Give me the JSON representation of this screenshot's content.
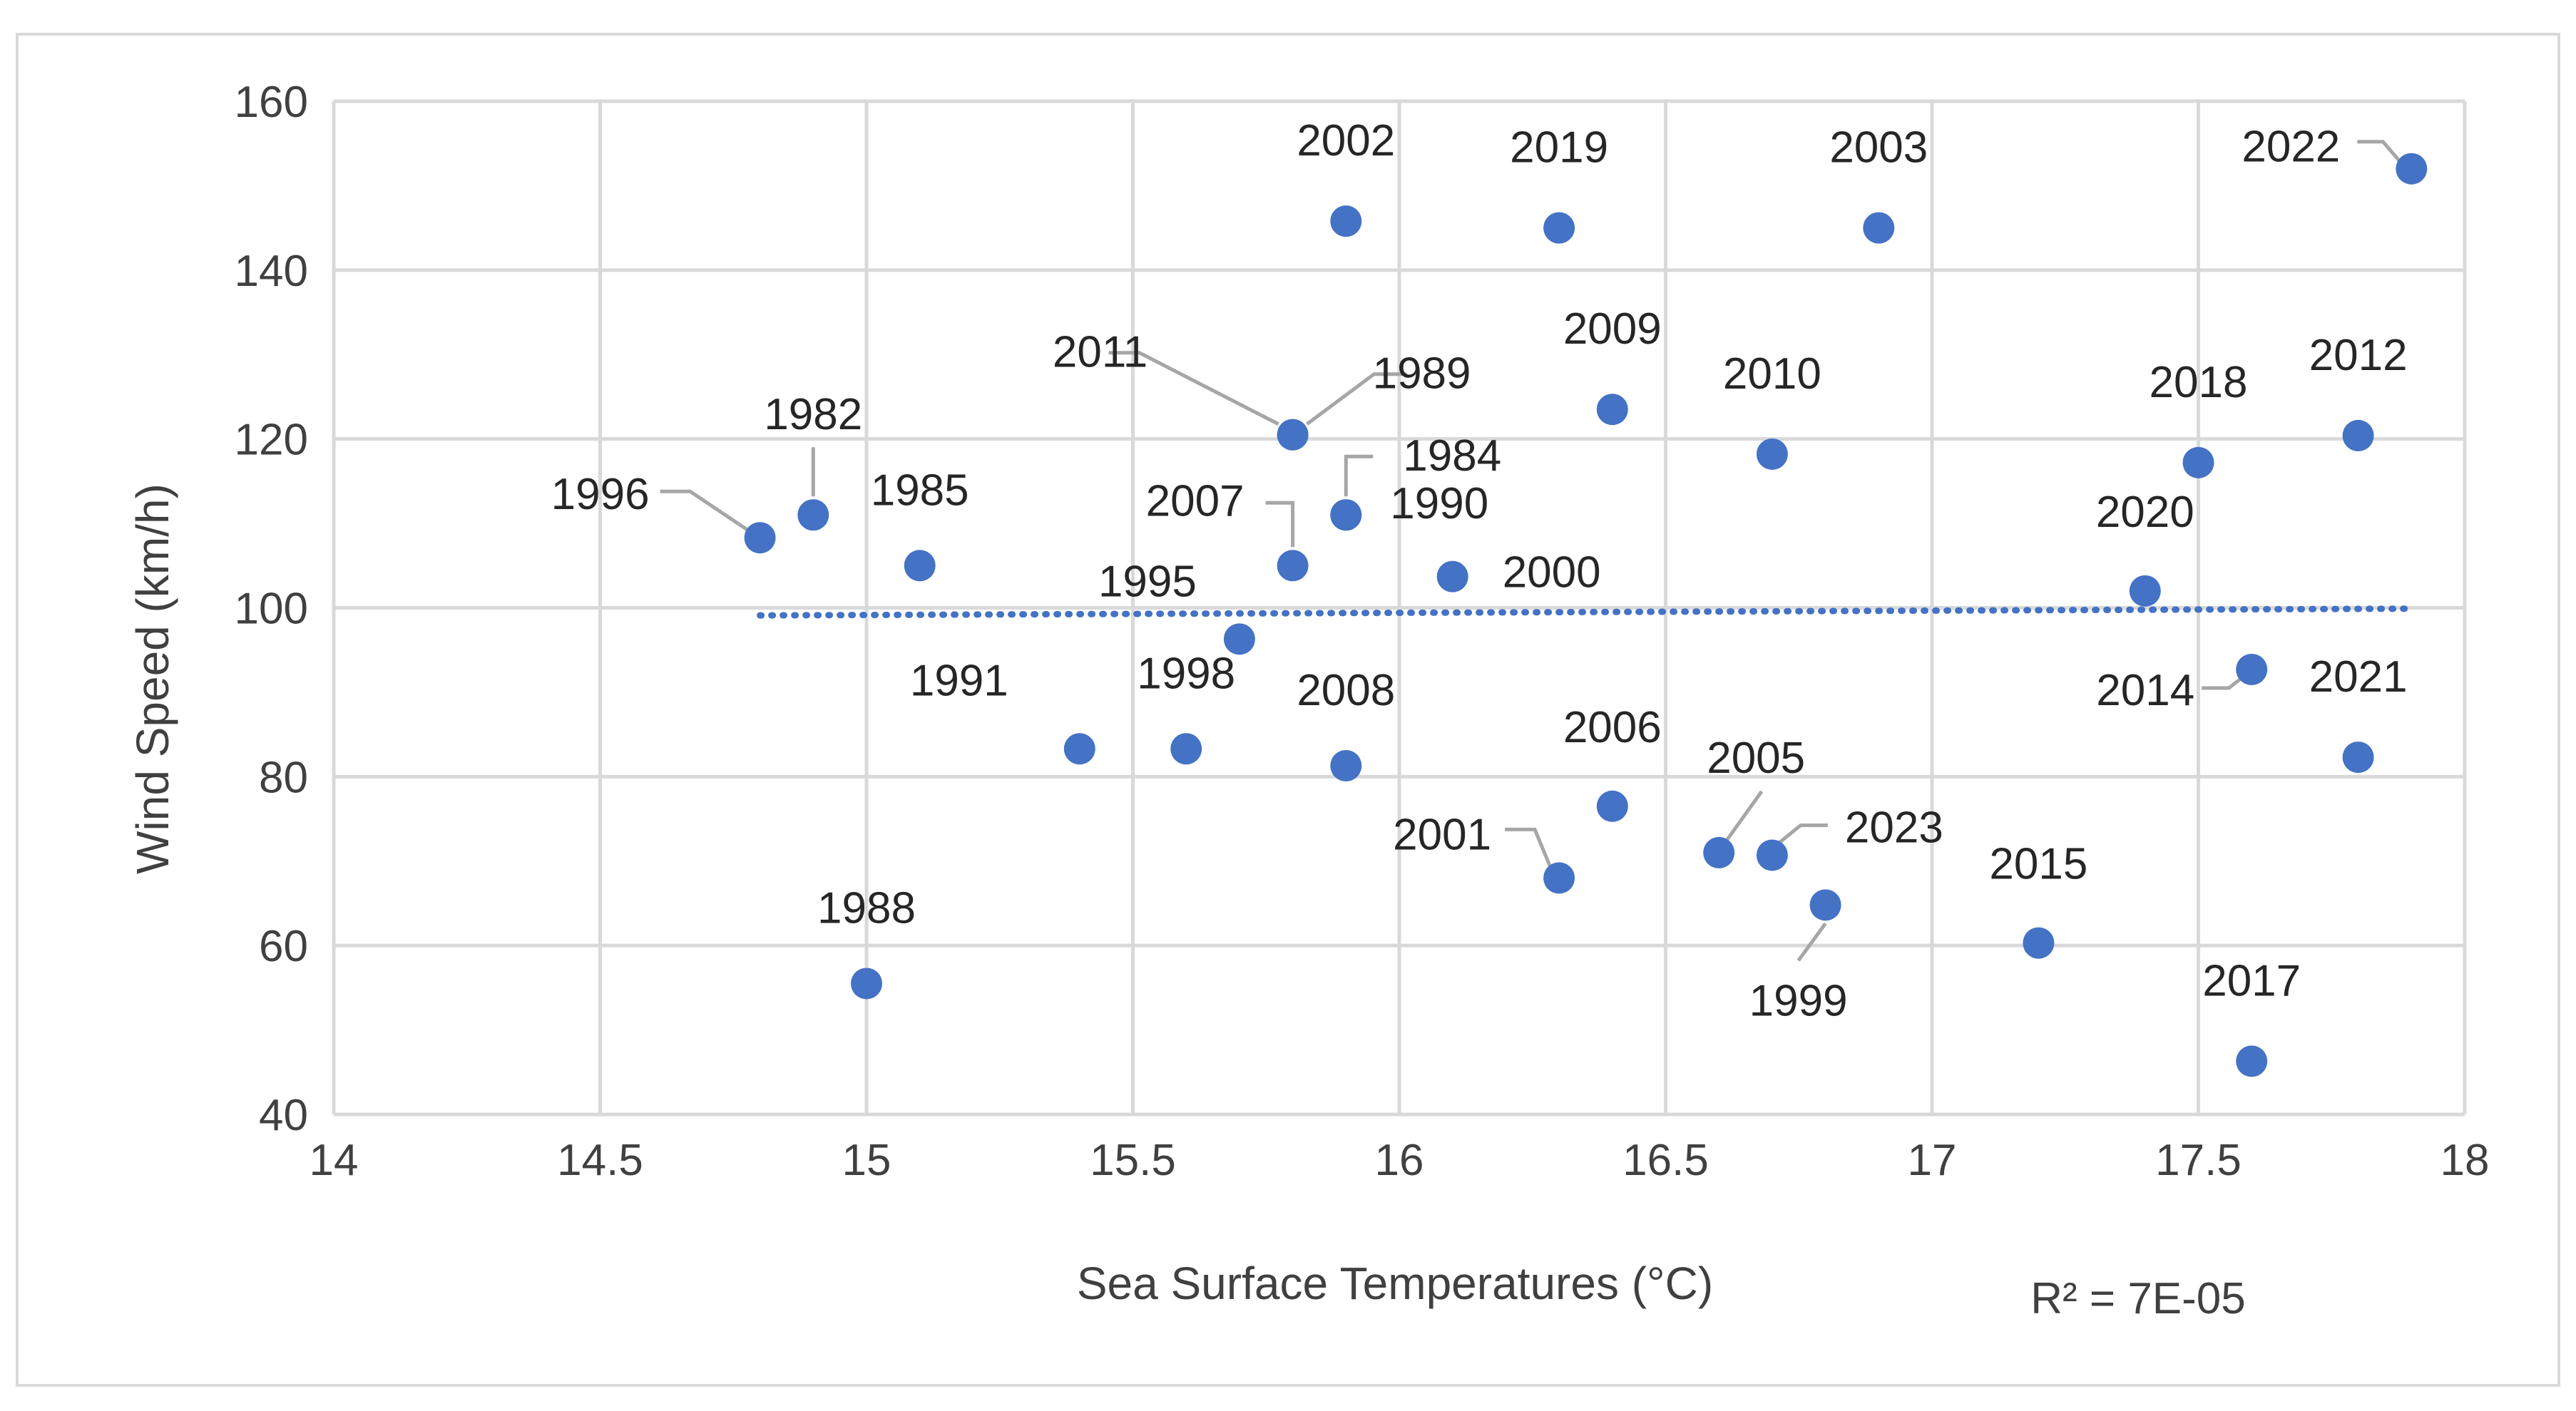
{
  "chart_data": {
    "type": "scatter",
    "title": "",
    "xlabel": "Sea Surface Temperatures (°C)",
    "ylabel": "Wind Speed (km/h)",
    "xlim": [
      14,
      18
    ],
    "ylim": [
      40,
      160
    ],
    "x_ticks": [
      14,
      14.5,
      15,
      15.5,
      16,
      16.5,
      17,
      17.5,
      18
    ],
    "x_tick_labels": [
      "14",
      "14.5",
      "15",
      "15.5",
      "16",
      "16.5",
      "17",
      "17.5",
      "18"
    ],
    "y_ticks": [
      40,
      60,
      80,
      100,
      120,
      140,
      160
    ],
    "y_tick_labels": [
      "40",
      "60",
      "80",
      "100",
      "120",
      "140",
      "160"
    ],
    "grid": true,
    "legend": "none",
    "marker_color": "#4472c4",
    "trendline": {
      "type": "linear",
      "style": "dotted",
      "color": "#4472c4",
      "x_start": 14.8,
      "y_start": 99.1,
      "x_end": 17.9,
      "y_end": 99.9,
      "r2_label": "R² = 7E-05"
    },
    "points": [
      {
        "label": "1982",
        "x": 14.9,
        "y": 111
      },
      {
        "label": "1984",
        "x": 15.9,
        "y": 111
      },
      {
        "label": "1985",
        "x": 15.1,
        "y": 105
      },
      {
        "label": "1988",
        "x": 15.0,
        "y": 55.5
      },
      {
        "label": "1989",
        "x": 15.8,
        "y": 120.5
      },
      {
        "label": "1990",
        "x": 15.9,
        "y": 111
      },
      {
        "label": "1991",
        "x": 15.4,
        "y": 83.3
      },
      {
        "label": "1995",
        "x": 15.7,
        "y": 96.3
      },
      {
        "label": "1996",
        "x": 14.8,
        "y": 108.3
      },
      {
        "label": "1998",
        "x": 15.6,
        "y": 83.3
      },
      {
        "label": "1999",
        "x": 16.8,
        "y": 64.8
      },
      {
        "label": "2000",
        "x": 16.1,
        "y": 103.7
      },
      {
        "label": "2001",
        "x": 16.3,
        "y": 68
      },
      {
        "label": "2002",
        "x": 15.9,
        "y": 145.8
      },
      {
        "label": "2003",
        "x": 16.9,
        "y": 145
      },
      {
        "label": "2005",
        "x": 16.6,
        "y": 71
      },
      {
        "label": "2006",
        "x": 16.4,
        "y": 76.5
      },
      {
        "label": "2007",
        "x": 15.8,
        "y": 105
      },
      {
        "label": "2008",
        "x": 15.9,
        "y": 81.3
      },
      {
        "label": "2009",
        "x": 16.4,
        "y": 123.5
      },
      {
        "label": "2010",
        "x": 16.7,
        "y": 118.2
      },
      {
        "label": "2011",
        "x": 15.8,
        "y": 120.5
      },
      {
        "label": "2012",
        "x": 17.8,
        "y": 120.4
      },
      {
        "label": "2014",
        "x": 17.6,
        "y": 92.7
      },
      {
        "label": "2015",
        "x": 17.2,
        "y": 60.3
      },
      {
        "label": "2017",
        "x": 17.6,
        "y": 46.3
      },
      {
        "label": "2018",
        "x": 17.5,
        "y": 117.2
      },
      {
        "label": "2019",
        "x": 16.3,
        "y": 145
      },
      {
        "label": "2020",
        "x": 17.4,
        "y": 102
      },
      {
        "label": "2021",
        "x": 17.8,
        "y": 82.3
      },
      {
        "label": "2022",
        "x": 17.9,
        "y": 152
      },
      {
        "label": "2023",
        "x": 16.7,
        "y": 70.7
      }
    ]
  }
}
